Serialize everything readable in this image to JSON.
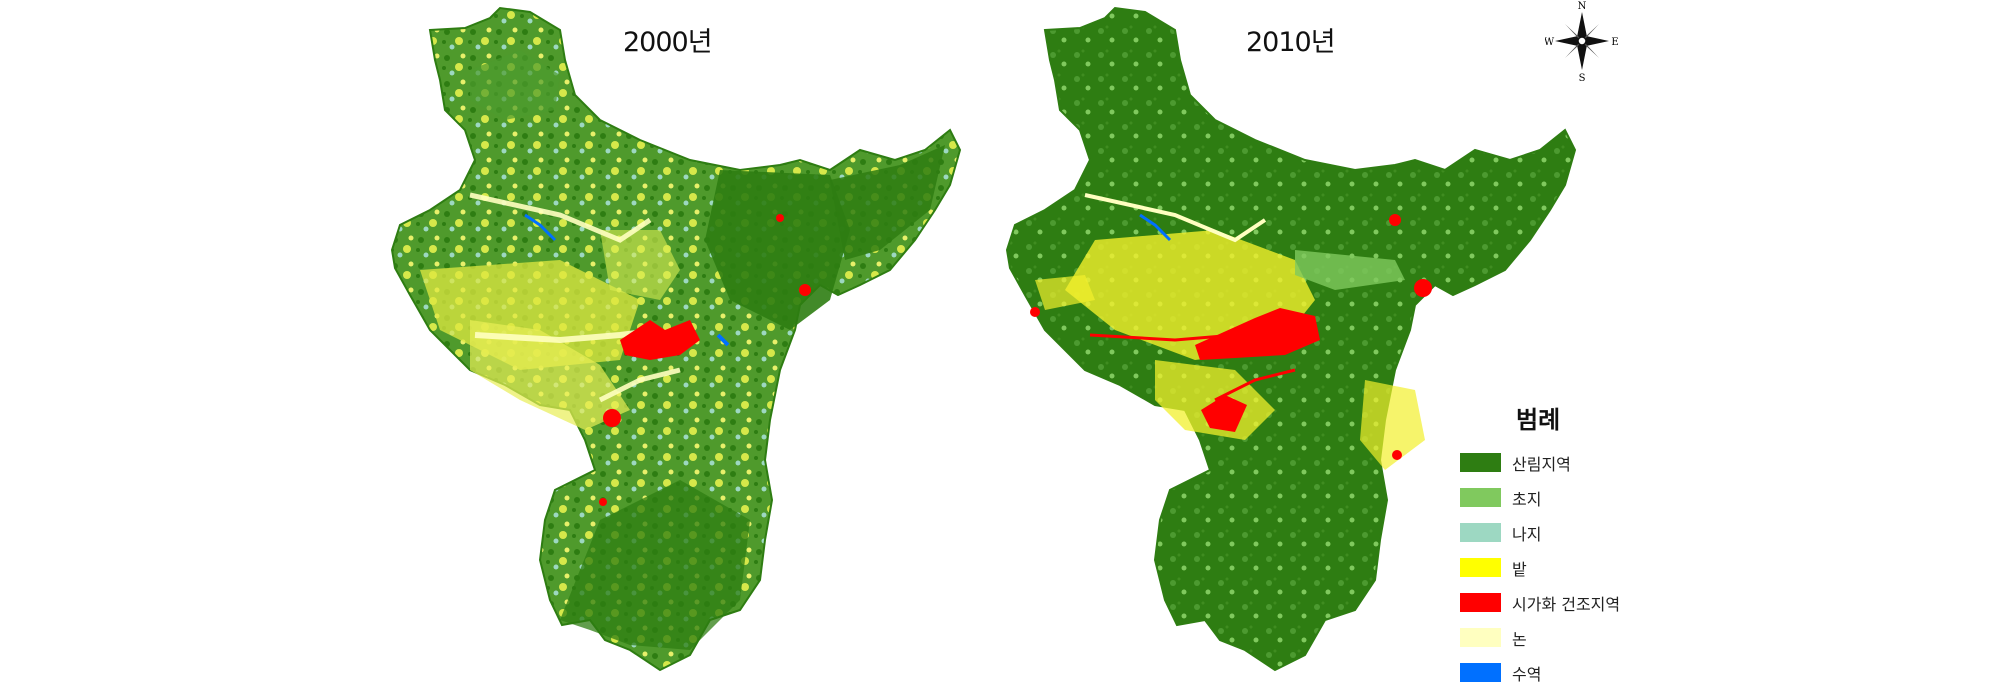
{
  "maps": [
    {
      "id": "map-2000",
      "title": "2000년"
    },
    {
      "id": "map-2010",
      "title": "2010년"
    }
  ],
  "compass": {
    "north": "N",
    "south": "S",
    "east": "E",
    "west": "W"
  },
  "legend": {
    "title": "범례",
    "items": [
      {
        "label": "산림지역",
        "color": "#2e7d12"
      },
      {
        "label": "초지",
        "color": "#80c95e"
      },
      {
        "label": "나지",
        "color": "#9dd8c2"
      },
      {
        "label": "밭",
        "color": "#ffff00"
      },
      {
        "label": "시가화 건조지역",
        "color": "#ff0000"
      },
      {
        "label": "논",
        "color": "#ffffc0"
      },
      {
        "label": "수역",
        "color": "#0070ff"
      }
    ]
  }
}
